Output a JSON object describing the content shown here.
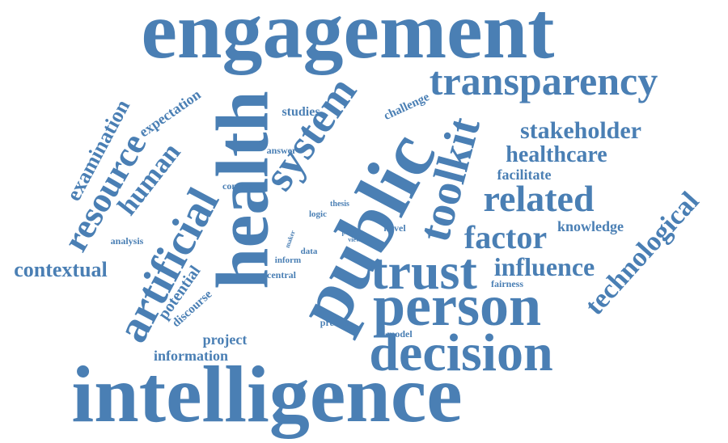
{
  "color": "#4a7fb4",
  "words": [
    {
      "key": "engagement",
      "text": "engagement",
      "size": 100
    },
    {
      "key": "intelligence",
      "text": "intelligence",
      "size": 100
    },
    {
      "key": "public",
      "text": "public",
      "size": 96
    },
    {
      "key": "health",
      "text": "health",
      "size": 92
    },
    {
      "key": "person",
      "text": "person",
      "size": 72
    },
    {
      "key": "decision",
      "text": "decision",
      "size": 66
    },
    {
      "key": "trust",
      "text": "trust",
      "size": 64
    },
    {
      "key": "transparency",
      "text": "transparency",
      "size": 50
    },
    {
      "key": "artificial",
      "text": "artificial",
      "size": 56
    },
    {
      "key": "toolkit",
      "text": "toolkit",
      "size": 56
    },
    {
      "key": "system",
      "text": "system",
      "size": 54
    },
    {
      "key": "related",
      "text": "related",
      "size": 46
    },
    {
      "key": "resource",
      "text": "resource",
      "size": 44
    },
    {
      "key": "technological",
      "text": "technological",
      "size": 34
    },
    {
      "key": "factor",
      "text": "factor",
      "size": 40
    },
    {
      "key": "influence",
      "text": "influence",
      "size": 32
    },
    {
      "key": "human",
      "text": "human",
      "size": 34
    },
    {
      "key": "stakeholder",
      "text": "stakeholder",
      "size": 30
    },
    {
      "key": "healthcare",
      "text": "healthcare",
      "size": 28
    },
    {
      "key": "examination",
      "text": "examination",
      "size": 26
    },
    {
      "key": "contextual",
      "text": "contextual",
      "size": 26
    },
    {
      "key": "expectation",
      "text": "expectation",
      "size": 18
    },
    {
      "key": "potential",
      "text": "potential",
      "size": 20
    },
    {
      "key": "facilitate",
      "text": "facilitate",
      "size": 18
    },
    {
      "key": "knowledge",
      "text": "knowledge",
      "size": 18
    },
    {
      "key": "information",
      "text": "information",
      "size": 18
    },
    {
      "key": "project",
      "text": "project",
      "size": 18
    },
    {
      "key": "studies",
      "text": "studies",
      "size": 16
    },
    {
      "key": "challenge",
      "text": "challenge",
      "size": 15
    },
    {
      "key": "discourse",
      "text": "discourse",
      "size": 15
    },
    {
      "key": "answer",
      "text": "answer",
      "size": 12
    },
    {
      "key": "content",
      "text": "content",
      "size": 12
    },
    {
      "key": "analysis",
      "text": "analysis",
      "size": 12
    },
    {
      "key": "novel",
      "text": "novel",
      "size": 12
    },
    {
      "key": "fairness",
      "text": "fairness",
      "size": 12
    },
    {
      "key": "central",
      "text": "central",
      "size": 12
    },
    {
      "key": "predict",
      "text": "predict",
      "size": 12
    },
    {
      "key": "model",
      "text": "model",
      "size": 12
    },
    {
      "key": "logic",
      "text": "logic",
      "size": 11
    },
    {
      "key": "thesis",
      "text": "thesis",
      "size": 10
    },
    {
      "key": "data",
      "text": "data",
      "size": 11
    },
    {
      "key": "inform",
      "text": "inform",
      "size": 11
    },
    {
      "key": "maker",
      "text": "maker",
      "size": 8
    },
    {
      "key": "part",
      "text": "part",
      "size": 8
    },
    {
      "key": "view",
      "text": "view",
      "size": 8
    }
  ]
}
